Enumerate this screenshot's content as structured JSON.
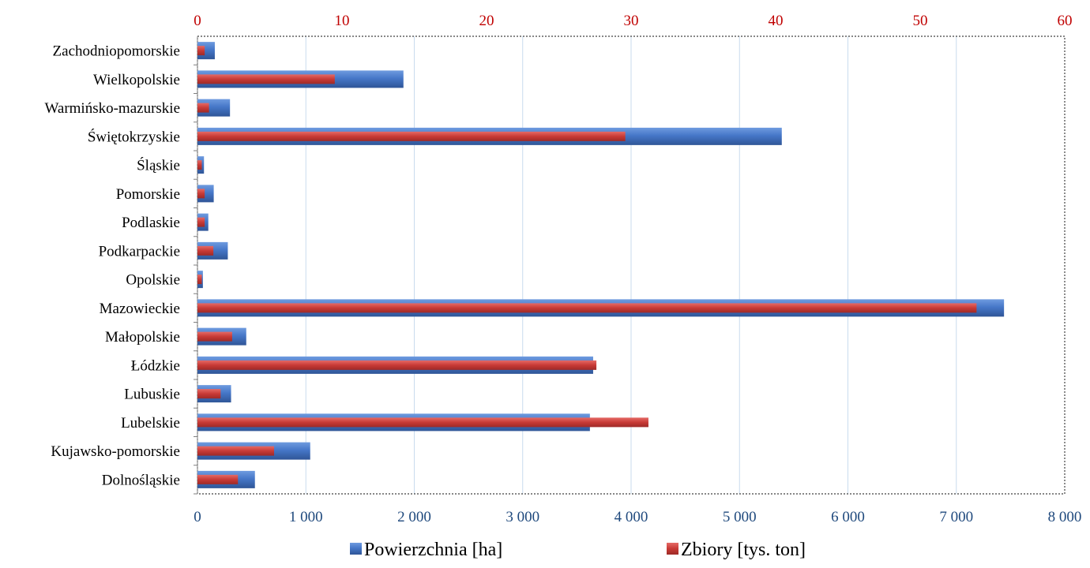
{
  "chart_data": {
    "type": "bar",
    "orientation": "horizontal",
    "categories": [
      "Dolnośląskie",
      "Kujawsko-pomorskie",
      "Lubelskie",
      "Lubuskie",
      "Łódzkie",
      "Małopolskie",
      "Mazowieckie",
      "Opolskie",
      "Podkarpackie",
      "Podlaskie",
      "Pomorskie",
      "Śląskie",
      "Świętokrzyskie",
      "Warmińsko-mazurskie",
      "Wielkopolskie",
      "Zachodniopomorskie"
    ],
    "series": [
      {
        "name": "Powierzchnia [ha]",
        "axis": "bottom",
        "color": "#4472C4",
        "values": [
          530,
          1040,
          3620,
          310,
          3650,
          450,
          7440,
          50,
          280,
          100,
          150,
          60,
          5390,
          300,
          1900,
          160
        ]
      },
      {
        "name": "Zbiory [tys. ton]",
        "axis": "top",
        "color": "#C0504D",
        "values": [
          2.8,
          5.3,
          31.2,
          1.6,
          27.6,
          2.4,
          53.9,
          0.3,
          1.1,
          0.5,
          0.5,
          0.3,
          29.6,
          0.8,
          9.5,
          0.5
        ]
      }
    ],
    "x_bottom": {
      "range": [
        0,
        8000
      ],
      "ticks": [
        "0",
        "1 000",
        "2 000",
        "3 000",
        "4 000",
        "5 000",
        "6 000",
        "7 000",
        "8 000"
      ],
      "tick_values": [
        0,
        1000,
        2000,
        3000,
        4000,
        5000,
        6000,
        7000,
        8000
      ],
      "color": "#1F497D"
    },
    "x_top": {
      "range": [
        0,
        60
      ],
      "ticks": [
        "0",
        "10",
        "20",
        "30",
        "40",
        "50",
        "60"
      ],
      "tick_values": [
        0,
        10,
        20,
        30,
        40,
        50,
        60
      ],
      "color": "#C00000"
    },
    "grid": true,
    "legend": {
      "position": "bottom",
      "items": [
        "Powierzchnia [ha]",
        "Zbiory [tys. ton]"
      ]
    },
    "title": "",
    "xlabel": "",
    "ylabel": ""
  }
}
